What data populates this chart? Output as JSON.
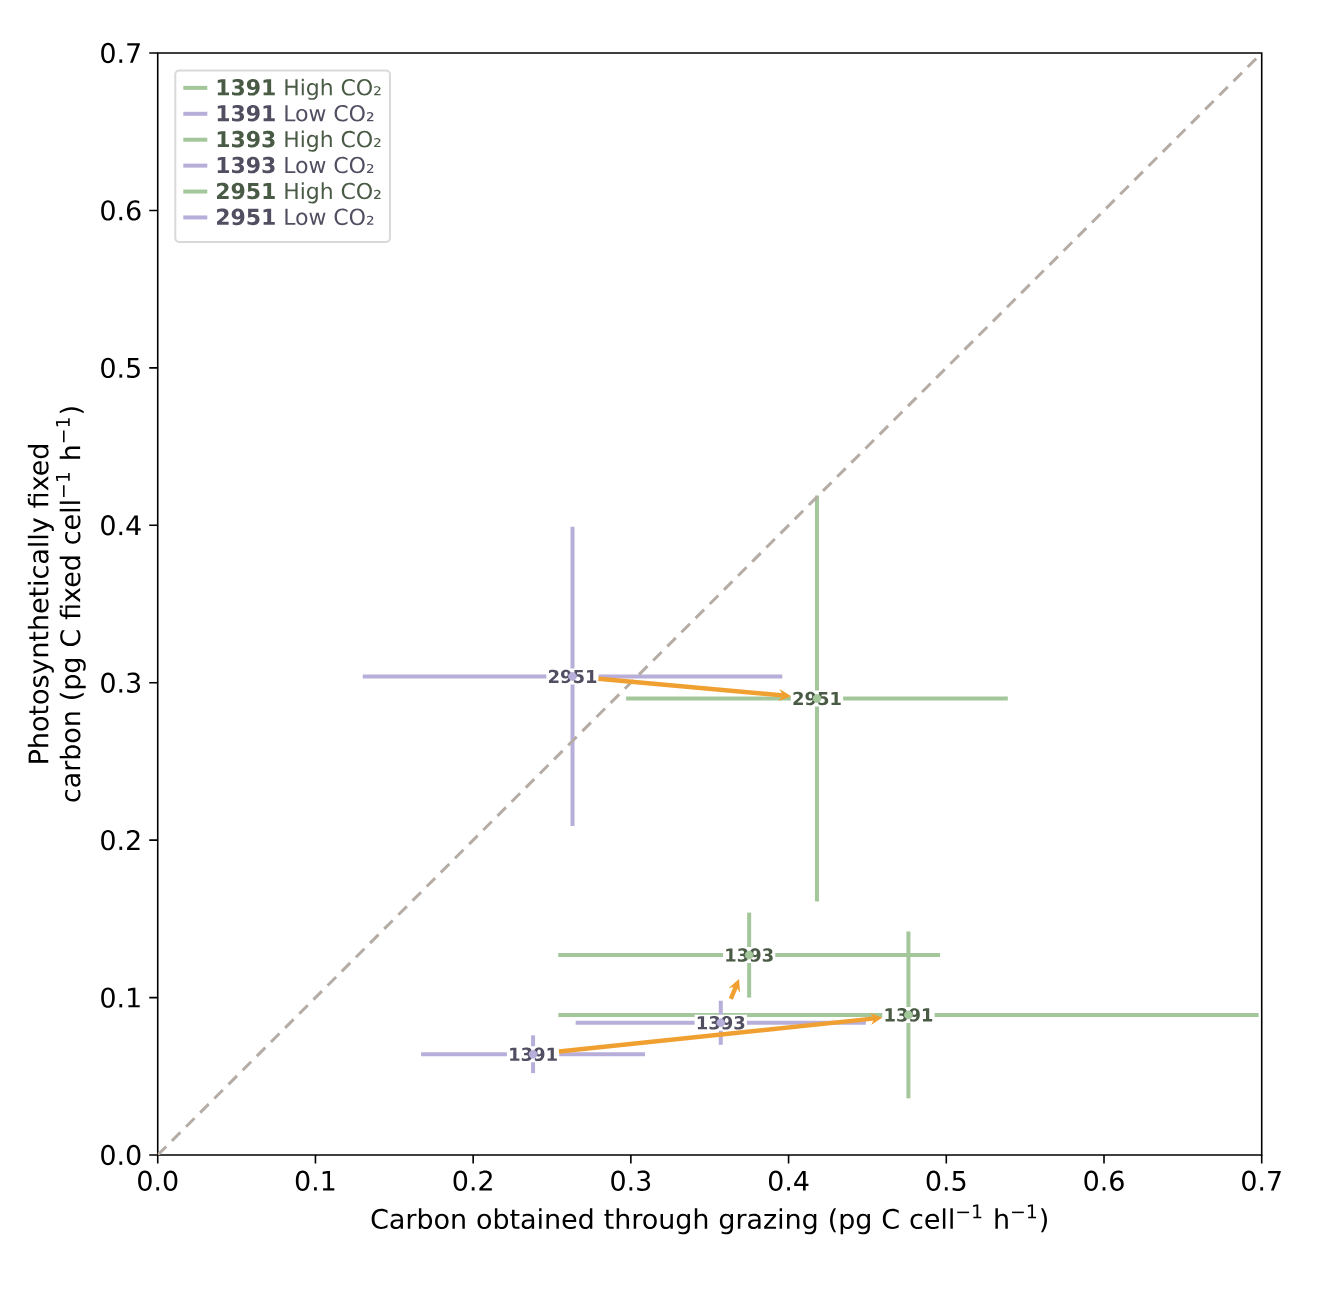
{
  "chart_data": {
    "type": "scatter",
    "xlabel": "Carbon obtained through grazing (pg C cell$^{−1}$ h$^{−1}$)",
    "ylabel": "Photosynthetically fixed carbon (pg C fixed cell$^{−1}$ h$^{−1}$)",
    "xlim": [
      0,
      0.7
    ],
    "ylim": [
      0,
      0.7
    ],
    "xticks": [
      {
        "value": 0,
        "label": "0.0"
      },
      0.1,
      0.2,
      0.3,
      0.4,
      0.5,
      0.6,
      0.7
    ],
    "yticks": [
      {
        "value": 0,
        "label": "0.0"
      },
      0.1,
      0.2,
      0.3,
      0.4,
      0.5,
      0.6,
      0.7
    ],
    "legend": "top left",
    "annotations": [
      {
        "text": "1391",
        "x": 0.476,
        "y": 0.089
      },
      {
        "text": "1391",
        "x": 0.238,
        "y": 0.064
      },
      {
        "text": "1393",
        "x": 0.375,
        "y": 0.127
      },
      {
        "text": "1393",
        "x": 0.357,
        "y": 0.084
      },
      {
        "text": "2951",
        "x": 0.418,
        "y": 0.29
      },
      {
        "text": "2951",
        "x": 0.263,
        "y": 0.304
      }
    ],
    "series": [
      {
        "name": "**1391** High CO₂",
        "color": "#a3c79a",
        "x": [
          0.476
        ],
        "values": [
          0.089
        ],
        "xerrors": [
          0.222
        ],
        "errors": [
          0.053
        ]
      },
      {
        "name": "**1391** Low CO₂",
        "color": "#b7aed9",
        "x": [
          0.238
        ],
        "values": [
          0.064
        ],
        "xerrors": [
          0.071
        ],
        "errors": [
          0.012
        ]
      },
      {
        "name": "**1393** High CO₂",
        "color": "#a3c79a",
        "x": [
          0.375
        ],
        "values": [
          0.127
        ],
        "xerrors": [
          0.121
        ],
        "errors": [
          0.027
        ]
      },
      {
        "name": "**1393** Low CO₂",
        "color": "#b7aed9",
        "x": [
          0.357
        ],
        "values": [
          0.084
        ],
        "xerrors": [
          0.092
        ],
        "errors": [
          0.014
        ]
      },
      {
        "name": "**2951** High CO₂",
        "color": "#a3c79a",
        "x": [
          0.418
        ],
        "values": [
          0.29
        ],
        "xerrors": [
          0.121
        ],
        "errors": [
          0.129
        ]
      },
      {
        "name": "**2951** Low CO₂",
        "color": "#b7aed9",
        "x": [
          0.263
        ],
        "values": [
          0.304
        ],
        "xerrors": [
          0.133
        ],
        "errors": [
          0.095
        ]
      },
      {
        "type": "line",
        "color": "#b5aca6",
        "line_style": "dashed",
        "x": [
          0,
          0.7
        ],
        "values": [
          0,
          0.7
        ]
      }
    ]
  }
}
